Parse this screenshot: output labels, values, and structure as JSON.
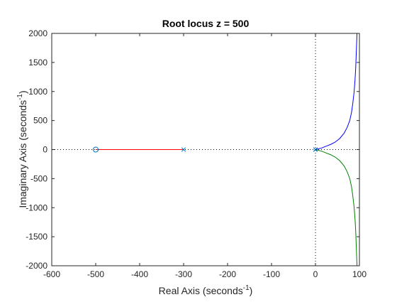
{
  "chart_data": {
    "type": "line",
    "title": "Root locus z = 500",
    "xlabel": {
      "text": "Real Axis (seconds",
      "sup": "-1",
      "end": ")"
    },
    "ylabel": {
      "text": "Imaginary Axis (seconds",
      "sup": "-1",
      "end": ")"
    },
    "xlim": [
      -600,
      100
    ],
    "ylim": [
      -2000,
      2000
    ],
    "xticks": [
      -600,
      -500,
      -400,
      -300,
      -200,
      -100,
      0,
      100
    ],
    "yticks": [
      -2000,
      -1500,
      -1000,
      -500,
      0,
      500,
      1000,
      1500,
      2000
    ],
    "grid": false,
    "reference_lines": {
      "x": 0,
      "y": 0,
      "style": "dotted"
    },
    "series": [
      {
        "color": "#0000ff",
        "points": [
          [
            0,
            0
          ],
          [
            15,
            30
          ],
          [
            25,
            60
          ],
          [
            35,
            90
          ],
          [
            45,
            130
          ],
          [
            55,
            190
          ],
          [
            65,
            280
          ],
          [
            72,
            380
          ],
          [
            78,
            500
          ],
          [
            82,
            640
          ],
          [
            85,
            800
          ],
          [
            88,
            1000
          ],
          [
            90,
            1200
          ],
          [
            91.5,
            1400
          ],
          [
            92.5,
            1600
          ],
          [
            93.5,
            1800
          ],
          [
            94.5,
            2000
          ]
        ]
      },
      {
        "color": "#008000",
        "points": [
          [
            0,
            0
          ],
          [
            15,
            -30
          ],
          [
            25,
            -60
          ],
          [
            35,
            -90
          ],
          [
            45,
            -130
          ],
          [
            55,
            -190
          ],
          [
            65,
            -280
          ],
          [
            72,
            -380
          ],
          [
            78,
            -500
          ],
          [
            82,
            -640
          ],
          [
            85,
            -800
          ],
          [
            88,
            -1000
          ],
          [
            90,
            -1200
          ],
          [
            91.5,
            -1400
          ],
          [
            92.5,
            -1600
          ],
          [
            93.5,
            -1800
          ],
          [
            94.5,
            -2000
          ]
        ]
      },
      {
        "color": "#ff0000",
        "points": [
          [
            -500,
            0
          ],
          [
            -300,
            0
          ]
        ]
      }
    ],
    "poles": [
      [
        -300,
        0
      ],
      [
        0,
        0
      ],
      [
        0,
        0
      ]
    ],
    "zeros": [
      [
        -500,
        0
      ]
    ],
    "marker_color": "#0072bd"
  }
}
